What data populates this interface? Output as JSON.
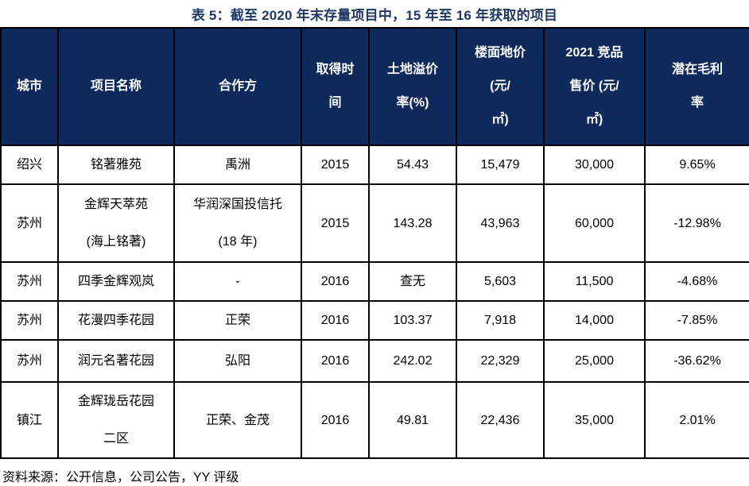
{
  "title": "表 5：截至 2020 年末存量项目中，15 年至 16 年获取的项目",
  "colors": {
    "header_bg": "#0e2a5c",
    "title_text": "#1f3864",
    "border": "#000000",
    "body_text": "#000000",
    "header_text": "#ffffff"
  },
  "table": {
    "columns": [
      {
        "label": "城市",
        "lines": [
          "城市"
        ]
      },
      {
        "label": "项目名称",
        "lines": [
          "项目名称"
        ]
      },
      {
        "label": "合作方",
        "lines": [
          "合作方"
        ]
      },
      {
        "label": "取得时间",
        "lines": [
          "取得时",
          "间"
        ]
      },
      {
        "label": "土地溢价率(%)",
        "lines": [
          "土地溢价",
          "率(%)"
        ]
      },
      {
        "label": "楼面地价 (元/㎡)",
        "lines": [
          "楼面地价",
          "(元/",
          "㎡)"
        ]
      },
      {
        "label": "2021 竞品售价 (元/㎡)",
        "lines": [
          "2021 竞品",
          "售价 (元/",
          "㎡)"
        ]
      },
      {
        "label": "潜在毛利率",
        "lines": [
          "潜在毛利",
          "率"
        ]
      }
    ],
    "rows": [
      {
        "cells": [
          [
            "绍兴"
          ],
          [
            "铭著雅苑"
          ],
          [
            "禹洲"
          ],
          [
            "2015"
          ],
          [
            "54.43"
          ],
          [
            "15,479"
          ],
          [
            "30,000"
          ],
          [
            "9.65%"
          ]
        ]
      },
      {
        "cells": [
          [
            "苏州"
          ],
          [
            "金辉天萃苑",
            "(海上铭著)"
          ],
          [
            "华润深国投信托",
            "(18 年)"
          ],
          [
            "2015"
          ],
          [
            "143.28"
          ],
          [
            "43,963"
          ],
          [
            "60,000"
          ],
          [
            "-12.98%"
          ]
        ]
      },
      {
        "cells": [
          [
            "苏州"
          ],
          [
            "四季金辉观岚"
          ],
          [
            "-"
          ],
          [
            "2016"
          ],
          [
            "查无"
          ],
          [
            "5,603"
          ],
          [
            "11,500"
          ],
          [
            "-4.68%"
          ]
        ]
      },
      {
        "cells": [
          [
            "苏州"
          ],
          [
            "花漫四季花园"
          ],
          [
            "正荣"
          ],
          [
            "2016"
          ],
          [
            "103.37"
          ],
          [
            "7,918"
          ],
          [
            "14,000"
          ],
          [
            "-7.85%"
          ]
        ]
      },
      {
        "cells": [
          [
            "苏州"
          ],
          [
            "润元名著花园"
          ],
          [
            "弘阳"
          ],
          [
            "2016"
          ],
          [
            "242.02"
          ],
          [
            "22,329"
          ],
          [
            "25,000"
          ],
          [
            "-36.62%"
          ]
        ]
      },
      {
        "cells": [
          [
            "镇江"
          ],
          [
            "金辉珑岳花园",
            "二区"
          ],
          [
            "正荣、金茂"
          ],
          [
            "2016"
          ],
          [
            "49.81"
          ],
          [
            "22,436"
          ],
          [
            "35,000"
          ],
          [
            "2.01%"
          ]
        ]
      }
    ]
  },
  "footer": {
    "source_label": "资料来源：公开信息，公司公告，YY 评级"
  }
}
